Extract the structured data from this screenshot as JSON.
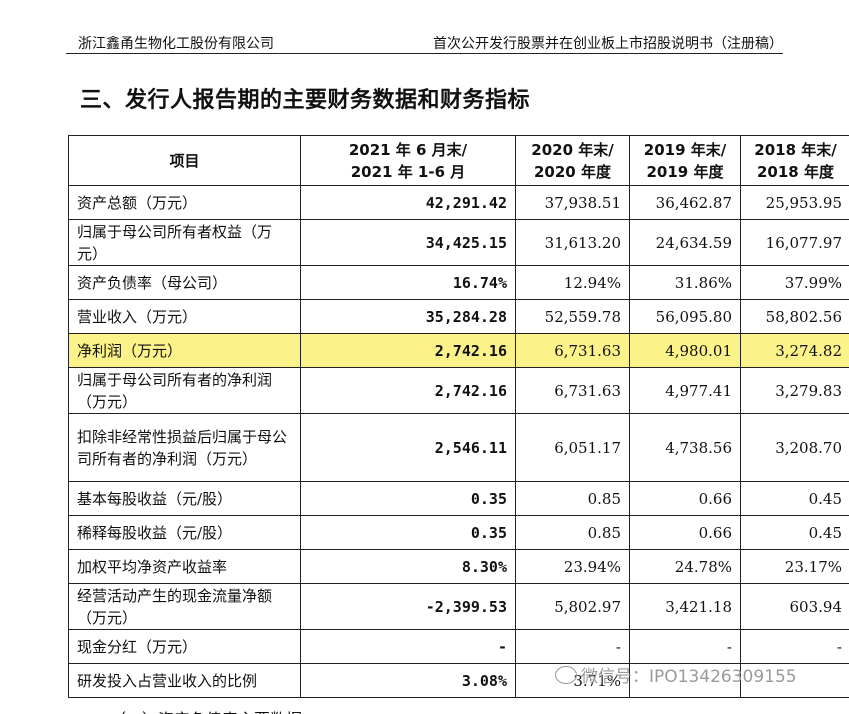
{
  "header": {
    "company": "浙江鑫甬生物化工股份有限公司",
    "doc_title": "首次公开发行股票并在创业板上市招股说明书（注册稿）"
  },
  "section_title": "三、发行人报告期的主要财务数据和财务指标",
  "table": {
    "headers": [
      [
        "项目"
      ],
      [
        "2021 年 6 月末/",
        "2021 年 1-6 月"
      ],
      [
        "2020 年末/",
        "2020 年度"
      ],
      [
        "2019 年末/",
        "2019 年度"
      ],
      [
        "2018 年末/",
        "2018 年度"
      ]
    ],
    "rows": [
      {
        "item": "资产总额（万元）",
        "values": [
          "42,291.42",
          "37,938.51",
          "36,462.87",
          "25,953.95"
        ]
      },
      {
        "item": "归属于母公司所有者权益（万元）",
        "values": [
          "34,425.15",
          "31,613.20",
          "24,634.59",
          "16,077.97"
        ]
      },
      {
        "item": "资产负债率（母公司）",
        "values": [
          "16.74%",
          "12.94%",
          "31.86%",
          "37.99%"
        ]
      },
      {
        "item": "营业收入（万元）",
        "values": [
          "35,284.28",
          "52,559.78",
          "56,095.80",
          "58,802.56"
        ]
      },
      {
        "item": "净利润（万元）",
        "values": [
          "2,742.16",
          "6,731.63",
          "4,980.01",
          "3,274.82"
        ],
        "highlight": true
      },
      {
        "item": "归属于母公司所有者的净利润（万元）",
        "values": [
          "2,742.16",
          "6,731.63",
          "4,977.41",
          "3,279.83"
        ]
      },
      {
        "item": "扣除非经常性损益后归属于母公司所有者的净利润（万元）",
        "values": [
          "2,546.11",
          "6,051.17",
          "4,738.56",
          "3,208.70"
        ]
      },
      {
        "item": "基本每股收益（元/股）",
        "values": [
          "0.35",
          "0.85",
          "0.66",
          "0.45"
        ]
      },
      {
        "item": "稀释每股收益（元/股）",
        "values": [
          "0.35",
          "0.85",
          "0.66",
          "0.45"
        ]
      },
      {
        "item": "加权平均净资产收益率",
        "values": [
          "8.30%",
          "23.94%",
          "24.78%",
          "23.17%"
        ]
      },
      {
        "item": "经营活动产生的现金流量净额（万元）",
        "values": [
          "-2,399.53",
          "5,802.97",
          "3,421.18",
          "603.94"
        ]
      },
      {
        "item": "现金分红（万元）",
        "values": [
          "-",
          "-",
          "-",
          "-"
        ]
      },
      {
        "item": "研发投入占营业收入的比例",
        "values": [
          "3.08%",
          "3.71%",
          "",
          ""
        ]
      }
    ]
  },
  "watermark": "微信号：IPO13426309155",
  "cut_text": "（一）资产负债表主要数据"
}
